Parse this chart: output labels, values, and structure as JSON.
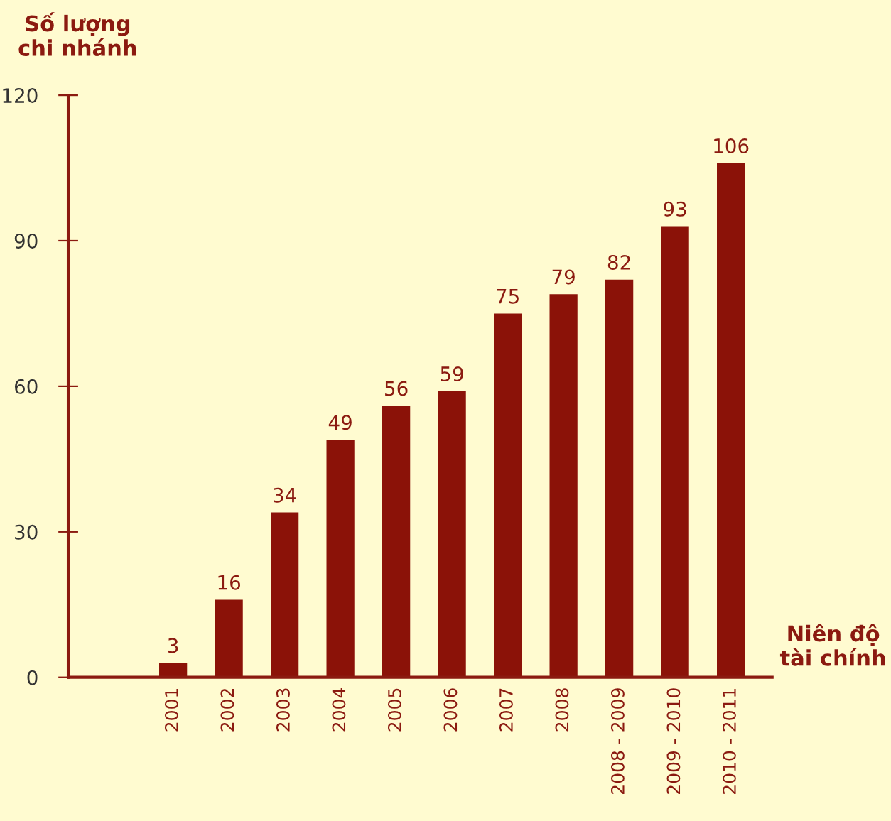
{
  "chart_data": {
    "type": "bar",
    "ylabel": "Số lượng\nchi nhánh",
    "xlabel": "Niên độ\ntài chính",
    "categories": [
      "2001",
      "2002",
      "2003",
      "2004",
      "2005",
      "2006",
      "2007",
      "2008",
      "2008 - 2009",
      "2009 - 2010",
      "2010 - 2011"
    ],
    "values": [
      3,
      16,
      34,
      49,
      56,
      59,
      75,
      79,
      82,
      93,
      106
    ],
    "color": "#8b1208",
    "ylim": [
      0,
      120
    ],
    "yticks": [
      0,
      30,
      60,
      90,
      120
    ],
    "grid": false,
    "data_labels": true
  }
}
